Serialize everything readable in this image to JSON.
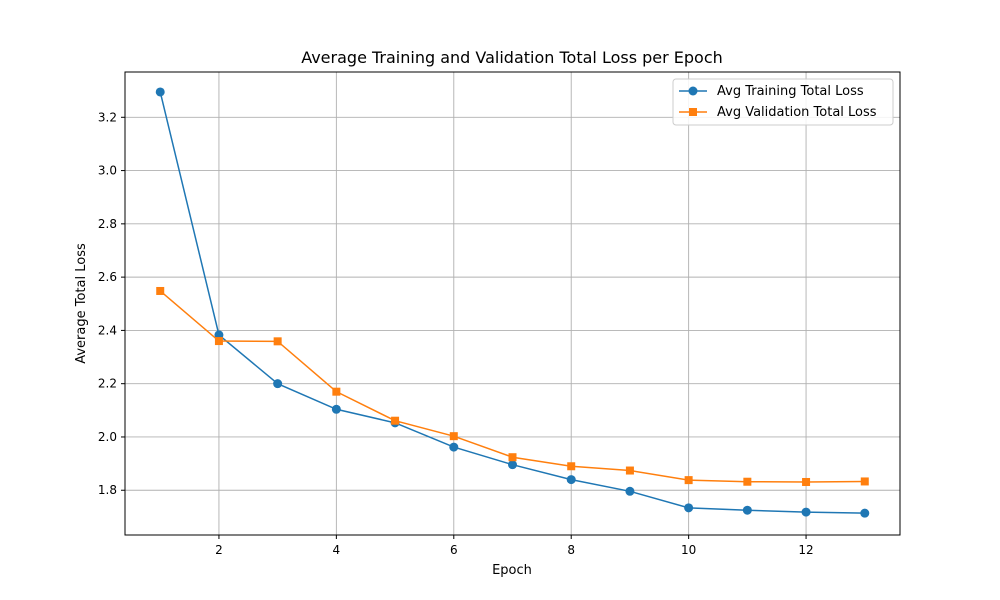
{
  "chart_data": {
    "type": "line",
    "title": "Average Training and Validation Total Loss per Epoch",
    "xlabel": "Epoch",
    "ylabel": "Average Total Loss",
    "xlim": [
      0.4,
      13.6
    ],
    "ylim": [
      1.632,
      3.37
    ],
    "xticks": [
      2,
      4,
      6,
      8,
      10,
      12
    ],
    "yticks": [
      1.8,
      2.0,
      2.2,
      2.4,
      2.6,
      2.8,
      3.0,
      3.2
    ],
    "xtick_labels": [
      "2",
      "4",
      "6",
      "8",
      "10",
      "12"
    ],
    "ytick_labels": [
      "1.8",
      "2.0",
      "2.2",
      "2.4",
      "2.6",
      "2.8",
      "3.0",
      "3.2"
    ],
    "grid": true,
    "legend_position": "top-right",
    "x": [
      1,
      2,
      3,
      4,
      5,
      6,
      7,
      8,
      9,
      10,
      11,
      12,
      13
    ],
    "series": [
      {
        "name": "Avg Training Total Loss",
        "color": "#1f77b4",
        "marker": "circle",
        "values": [
          3.295,
          2.383,
          2.2,
          2.104,
          2.053,
          1.962,
          1.896,
          1.84,
          1.796,
          1.734,
          1.725,
          1.718,
          1.714
        ]
      },
      {
        "name": "Avg Validation Total Loss",
        "color": "#ff7f0e",
        "marker": "square",
        "values": [
          2.548,
          2.36,
          2.359,
          2.17,
          2.061,
          2.003,
          1.924,
          1.89,
          1.874,
          1.838,
          1.832,
          1.831,
          1.833
        ]
      }
    ]
  }
}
